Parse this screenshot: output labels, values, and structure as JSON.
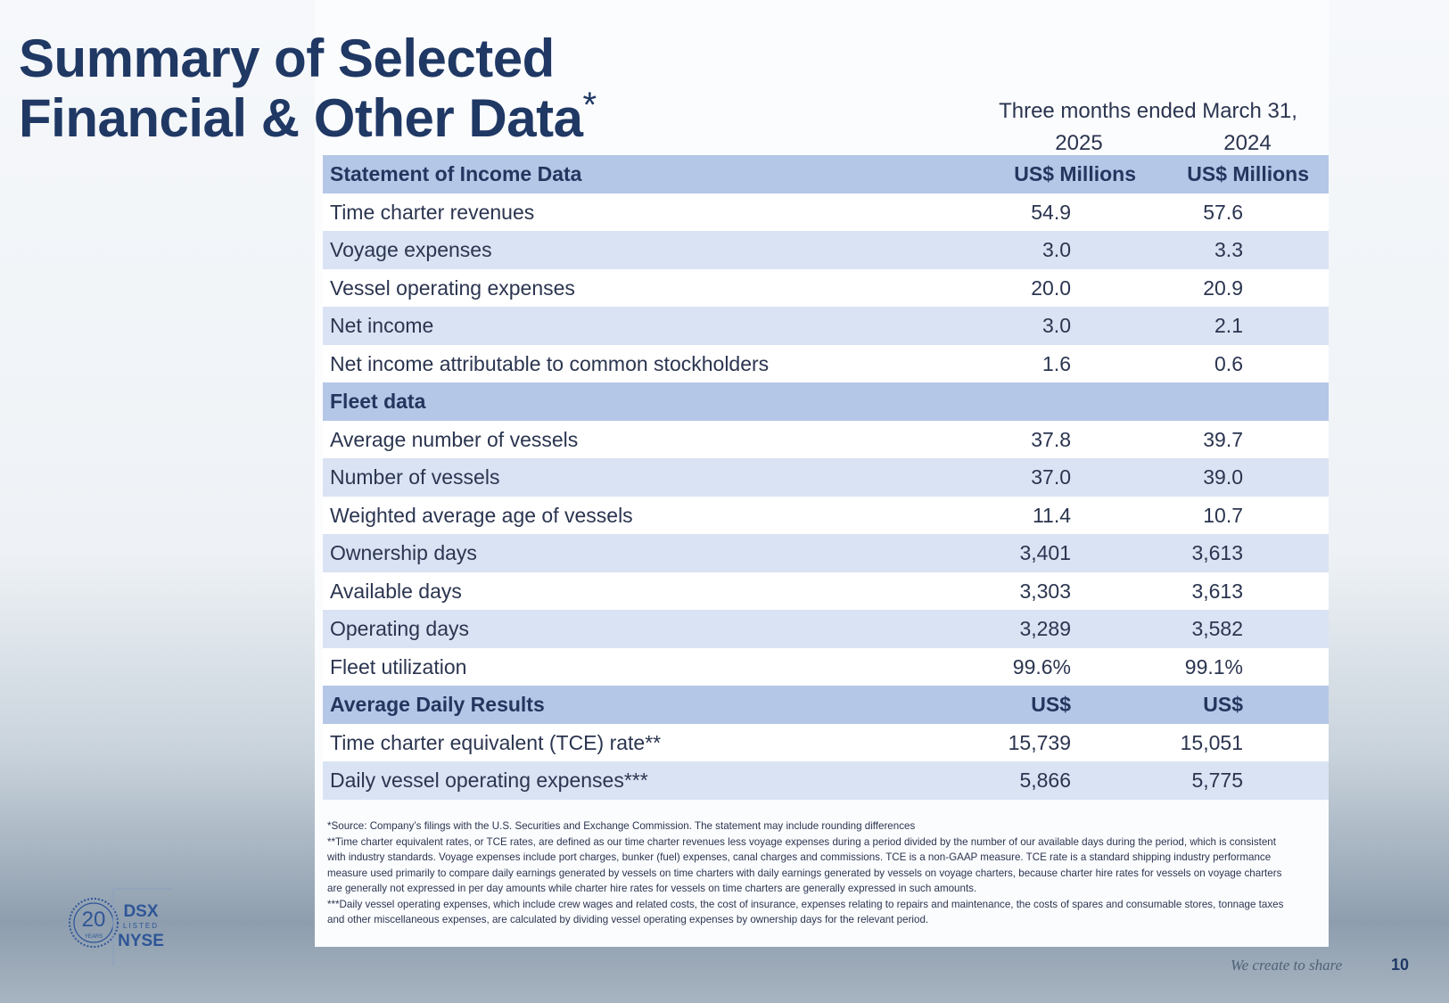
{
  "title": {
    "line1": "Summary of Selected",
    "line2": "Financial & Other Data",
    "marker": "*"
  },
  "table": {
    "period_header": "Three months ended March 31,",
    "years": [
      "2025",
      "2024"
    ],
    "sections": [
      {
        "title": "Statement of Income Data",
        "units": [
          "US$ Millions",
          "US$ Millions"
        ],
        "rows": [
          [
            "Time charter revenues",
            "54.9",
            "57.6"
          ],
          [
            "Voyage expenses",
            "3.0",
            "3.3"
          ],
          [
            "Vessel operating expenses",
            "20.0",
            "20.9"
          ],
          [
            "Net income",
            "3.0",
            "2.1"
          ],
          [
            "Net income attributable to common stockholders",
            "1.6",
            "0.6"
          ]
        ]
      },
      {
        "title": "Fleet data",
        "rows": [
          [
            "Average number of vessels",
            "37.8",
            "39.7"
          ],
          [
            "Number of vessels",
            "37.0",
            "39.0"
          ],
          [
            "Weighted average age of vessels",
            "11.4",
            "10.7"
          ],
          [
            "Ownership days",
            "3,401",
            "3,613"
          ],
          [
            "Available days",
            "3,303",
            "3,613"
          ],
          [
            "Operating days",
            "3,289",
            "3,582"
          ],
          [
            "Fleet utilization",
            "99.6%",
            "99.1%"
          ]
        ]
      },
      {
        "title": "Average Daily Results",
        "units": [
          "US$",
          "US$"
        ],
        "rows": [
          [
            "Time charter equivalent (TCE) rate**",
            "15,739",
            "15,051"
          ],
          [
            "Daily vessel operating expenses***",
            "5,866",
            "5,775"
          ]
        ]
      }
    ]
  },
  "footnotes": [
    "*Source: Company’s filings with the U.S. Securities and Exchange Commission. The statement may include rounding differences",
    "**Time charter equivalent rates, or TCE rates, are defined as our time charter revenues less voyage expenses during a period divided by the number of our available days during the period, which is consistent with industry standards.  Voyage expenses include port charges, bunker (fuel) expenses, canal charges and commissions.  TCE is a non-GAAP measure.  TCE rate is a standard shipping industry performance measure used primarily to compare daily earnings generated by vessels on time charters with daily earnings generated by vessels on voyage charters, because charter hire rates for vessels on voyage charters are generally not expressed in per day amounts while charter hire rates for vessels on time charters are generally expressed in such amounts.",
    "***Daily vessel operating expenses, which include crew wages and related costs, the cost of insurance, expenses relating to repairs and maintenance, the costs of spares and consumable stores, tonnage taxes and other miscellaneous expenses, are calculated by dividing vessel operating expenses by ownership days for the relevant period."
  ],
  "logo": {
    "years_number": "20",
    "years_label": "YEARS",
    "top": "DSX",
    "middle": "LISTED",
    "bottom": "NYSE"
  },
  "footer": {
    "tagline": "We create to share",
    "page_number": "10"
  }
}
